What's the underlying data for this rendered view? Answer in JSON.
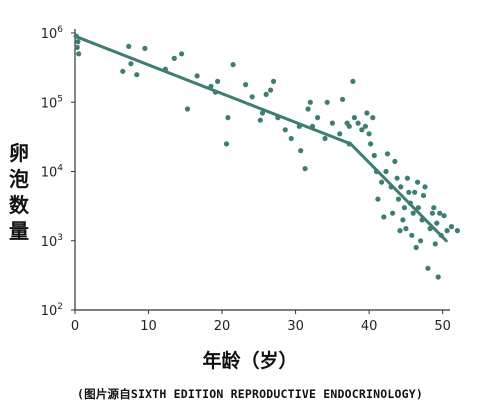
{
  "chart_data": {
    "type": "scatter",
    "xlabel": "年龄（岁）",
    "ylabel": "卵泡数量",
    "y_scale": "log",
    "xlim": [
      0,
      51
    ],
    "ylim": [
      100,
      1000000
    ],
    "xticks": [
      "0",
      "10",
      "20",
      "30",
      "40",
      "50"
    ],
    "yticks": [
      {
        "base": "10",
        "exp": "2"
      },
      {
        "base": "10",
        "exp": "3"
      },
      {
        "base": "10",
        "exp": "4"
      },
      {
        "base": "10",
        "exp": "5"
      },
      {
        "base": "10",
        "exp": "6"
      }
    ],
    "points": [
      [
        0.2,
        900000
      ],
      [
        0.3,
        620000
      ],
      [
        0.5,
        500000
      ],
      [
        0.4,
        750000
      ],
      [
        6.5,
        280000
      ],
      [
        7.3,
        640000
      ],
      [
        7.6,
        360000
      ],
      [
        8.4,
        250000
      ],
      [
        9.5,
        600000
      ],
      [
        12.3,
        300000
      ],
      [
        13.5,
        430000
      ],
      [
        14.5,
        500000
      ],
      [
        15.3,
        80000
      ],
      [
        16.6,
        240000
      ],
      [
        18.5,
        170000
      ],
      [
        19.1,
        140000
      ],
      [
        19.4,
        200000
      ],
      [
        20.6,
        25000
      ],
      [
        20.8,
        60000
      ],
      [
        21.5,
        350000
      ],
      [
        23.2,
        180000
      ],
      [
        24.1,
        120000
      ],
      [
        25.2,
        55000
      ],
      [
        25.5,
        70000
      ],
      [
        26.0,
        130000
      ],
      [
        26.6,
        150000
      ],
      [
        27.0,
        200000
      ],
      [
        27.6,
        60000
      ],
      [
        28.6,
        40000
      ],
      [
        29.4,
        30000
      ],
      [
        30.5,
        45000
      ],
      [
        30.7,
        20000
      ],
      [
        31.3,
        11000
      ],
      [
        31.7,
        80000
      ],
      [
        32.0,
        100000
      ],
      [
        32.3,
        45000
      ],
      [
        33.0,
        60000
      ],
      [
        34.0,
        30000
      ],
      [
        34.3,
        100000
      ],
      [
        35.0,
        50000
      ],
      [
        36.0,
        35000
      ],
      [
        36.4,
        110000
      ],
      [
        37.0,
        50000
      ],
      [
        37.3,
        45000
      ],
      [
        37.8,
        200000
      ],
      [
        37.3,
        25000
      ],
      [
        38.0,
        60000
      ],
      [
        38.5,
        50000
      ],
      [
        39.0,
        40000
      ],
      [
        39.5,
        45000
      ],
      [
        39.7,
        70000
      ],
      [
        40.0,
        35000
      ],
      [
        40.2,
        25000
      ],
      [
        40.5,
        60000
      ],
      [
        40.7,
        17000
      ],
      [
        41.0,
        10000
      ],
      [
        41.2,
        4000
      ],
      [
        41.7,
        7000
      ],
      [
        42.0,
        2200
      ],
      [
        42.3,
        10000
      ],
      [
        42.5,
        18000
      ],
      [
        43.0,
        6000
      ],
      [
        43.2,
        2500
      ],
      [
        43.5,
        14000
      ],
      [
        43.8,
        8000
      ],
      [
        44.0,
        4000
      ],
      [
        44.2,
        1400
      ],
      [
        44.3,
        6000
      ],
      [
        44.6,
        2000
      ],
      [
        44.8,
        3000
      ],
      [
        45.0,
        1500
      ],
      [
        45.2,
        8000
      ],
      [
        45.4,
        5000
      ],
      [
        45.6,
        3500
      ],
      [
        45.8,
        1200
      ],
      [
        46.0,
        2500
      ],
      [
        46.2,
        5000
      ],
      [
        46.4,
        800
      ],
      [
        46.6,
        7000
      ],
      [
        46.7,
        3000
      ],
      [
        47.0,
        1000
      ],
      [
        47.2,
        2000
      ],
      [
        47.4,
        4500
      ],
      [
        47.6,
        6000
      ],
      [
        48.0,
        400
      ],
      [
        48.3,
        1500
      ],
      [
        48.6,
        2500
      ],
      [
        48.8,
        3000
      ],
      [
        49.0,
        900
      ],
      [
        49.2,
        1800
      ],
      [
        49.4,
        300
      ],
      [
        49.6,
        2500
      ],
      [
        49.8,
        1200
      ],
      [
        50.2,
        2300
      ],
      [
        50.6,
        1400
      ],
      [
        51.2,
        1600
      ],
      [
        52.0,
        1400
      ]
    ],
    "fit_line": [
      [
        0,
        900000
      ],
      [
        37.5,
        25000
      ],
      [
        50.5,
        1000
      ]
    ]
  },
  "caption": "(图片源自SIXTH EDITION REPRODUCTIVE ENDOCRINOLOGY)",
  "colors": {
    "series": "#3d7d72",
    "axis": "#333333"
  }
}
